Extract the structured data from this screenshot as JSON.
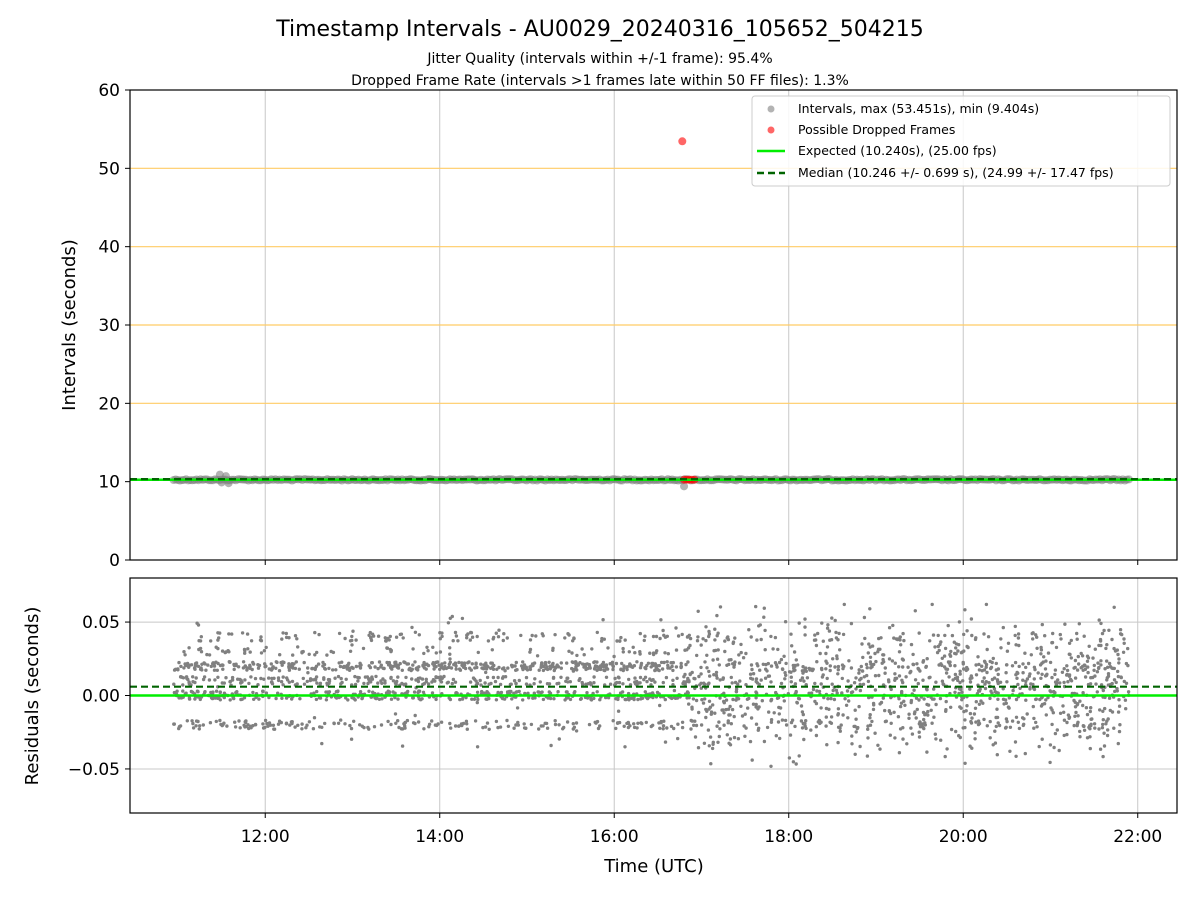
{
  "title": "Timestamp Intervals - AU0029_20240316_105652_504215",
  "subtitle_1": "Jitter Quality (intervals within +/-1 frame): 95.4%",
  "subtitle_2": "Dropped Frame Rate (intervals >1 frames late within 50 FF files): 1.3%",
  "colors": {
    "intervals": "#808080",
    "dropped": "#ff0000",
    "expected": "#00ee00",
    "median": "#006400",
    "threshold_lines": "#ffcc66",
    "grid": "#c8c8c8"
  },
  "chart_data": [
    {
      "type": "scatter",
      "ylabel": "Intervals (seconds)",
      "ylim": [
        0,
        60
      ],
      "yticks": [
        0,
        10,
        20,
        30,
        40,
        50,
        60
      ],
      "xlim_hours": [
        10.45,
        22.45
      ],
      "xticks_hours": [
        12,
        14,
        16,
        18,
        20,
        22
      ],
      "grid": "vertical",
      "horizontal_reference_lines": [
        10.24,
        20,
        30,
        40,
        50
      ],
      "legend_position": "top-right",
      "series": [
        {
          "name": "Intervals, max (53.451s), min (9.404s)",
          "kind": "points",
          "x_range_hours": [
            10.95,
            21.9
          ],
          "y_approx": 10.24,
          "max": 53.451,
          "min": 9.404
        },
        {
          "name": "Possible Dropped Frames",
          "kind": "points",
          "points": [
            {
              "x": 16.78,
              "y": 53.451
            },
            {
              "x": 16.8,
              "y": 10.25
            },
            {
              "x": 16.83,
              "y": 10.25
            },
            {
              "x": 16.86,
              "y": 10.25
            },
            {
              "x": 16.89,
              "y": 10.25
            },
            {
              "x": 16.92,
              "y": 10.25
            }
          ]
        },
        {
          "name": "Expected (10.240s), (25.00 fps)",
          "kind": "hline",
          "y": 10.24
        },
        {
          "name": "Median (10.246 +/- 0.699 s), (24.99 +/- 17.47 fps)",
          "kind": "hline-dashed",
          "y": 10.246
        }
      ]
    },
    {
      "type": "scatter",
      "xlabel": "Time (UTC)",
      "ylabel": "Residuals (seconds)",
      "ylim": [
        -0.08,
        0.08
      ],
      "yticks": [
        -0.05,
        0.0,
        0.05
      ],
      "ytick_labels": [
        "−0.05",
        "0.00",
        "0.05"
      ],
      "xlim_hours": [
        10.45,
        22.45
      ],
      "xticks_hours": [
        12,
        14,
        16,
        18,
        20,
        22
      ],
      "xtick_labels": [
        "12:00",
        "14:00",
        "16:00",
        "18:00",
        "20:00",
        "22:00"
      ],
      "grid": "both",
      "expected_line": 0.0,
      "median_line": 0.006,
      "residual_x_range_hours": [
        10.95,
        21.9
      ],
      "residual_range": [
        -0.05,
        0.062
      ],
      "residual_levels": [
        -0.02,
        0.0,
        0.01,
        0.02,
        0.04
      ]
    }
  ]
}
